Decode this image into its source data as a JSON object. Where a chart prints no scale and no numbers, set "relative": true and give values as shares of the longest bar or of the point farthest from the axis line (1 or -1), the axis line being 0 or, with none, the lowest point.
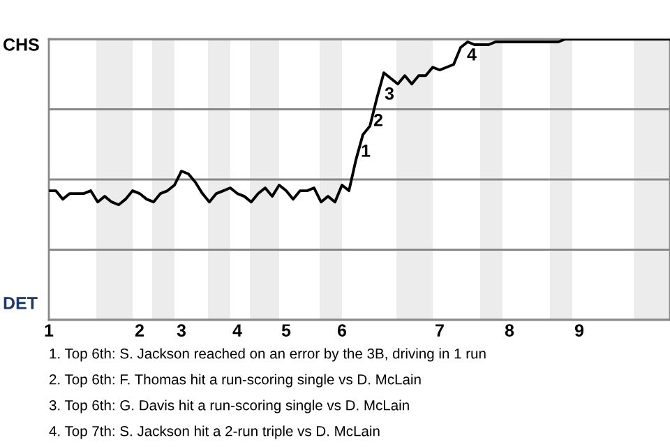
{
  "chart_data": {
    "type": "line",
    "relative": true,
    "grid": "y",
    "marker": "none",
    "line_style": "solid",
    "categories": [
      "1",
      null,
      null,
      null,
      null,
      null,
      null,
      null,
      null,
      null,
      null,
      null,
      null,
      "2",
      null,
      null,
      null,
      null,
      null,
      "3",
      null,
      null,
      null,
      null,
      null,
      null,
      null,
      "4",
      null,
      null,
      null,
      null,
      null,
      null,
      "5",
      null,
      null,
      null,
      null,
      null,
      null,
      null,
      "6",
      null,
      null,
      null,
      null,
      null,
      null,
      null,
      null,
      null,
      null,
      null,
      null,
      null,
      "7",
      null,
      null,
      null,
      null,
      null,
      null,
      null,
      null,
      null,
      "8",
      null,
      null,
      null,
      null,
      null,
      null,
      null,
      null,
      null,
      "9",
      null,
      null,
      null,
      null,
      null,
      null,
      null,
      null,
      null,
      null,
      null,
      null,
      null
    ],
    "series": [
      {
        "color": "#000000",
        "values": [
          0.46,
          0.46,
          0.43,
          0.45,
          0.45,
          0.45,
          0.46,
          0.42,
          0.44,
          0.42,
          0.41,
          0.43,
          0.46,
          0.45,
          0.43,
          0.42,
          0.45,
          0.46,
          0.48,
          0.53,
          0.52,
          0.49,
          0.45,
          0.42,
          0.45,
          0.46,
          0.47,
          0.45,
          0.44,
          0.42,
          0.45,
          0.47,
          0.44,
          0.48,
          0.46,
          0.43,
          0.46,
          0.46,
          0.47,
          0.42,
          0.44,
          0.42,
          0.48,
          0.46,
          0.57,
          0.66,
          0.69,
          0.79,
          0.88,
          0.86,
          0.84,
          0.87,
          0.84,
          0.87,
          0.87,
          0.9,
          0.89,
          0.9,
          0.91,
          0.97,
          0.99,
          0.98,
          0.98,
          0.98,
          0.99,
          0.99,
          0.99,
          0.99,
          0.99,
          0.99,
          0.99,
          0.99,
          0.99,
          0.99,
          1.0,
          1.0,
          1.0,
          1.0,
          1.0,
          1.0,
          1.0,
          1.0,
          1.0,
          1.0,
          1.0,
          1.0,
          1.0,
          1.0,
          1.0,
          1.0
        ]
      }
    ],
    "annotations": [
      "1",
      "2",
      "3",
      "4",
      "CHS",
      "DET",
      "1. Top 6th: S. Jackson reached on an error by the 3B, driving in 1 run",
      "2. Top 6th: F. Thomas hit a run-scoring single vs D. McLain",
      "3. Top 6th: G. Davis hit a run-scoring single vs D. McLain",
      "4. Top 7th: S. Jackson hit a 2-run triple vs D. McLain"
    ]
  }
}
